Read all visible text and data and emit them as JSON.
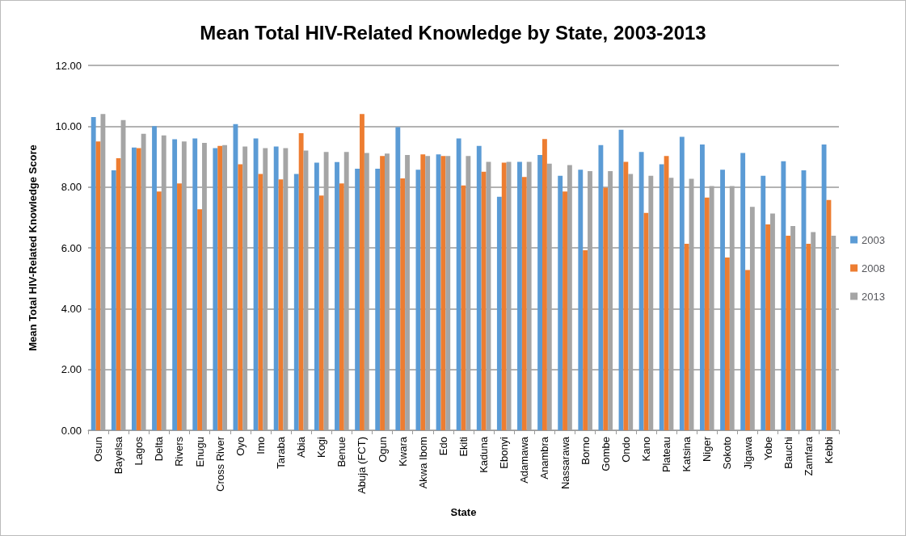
{
  "chart_data": {
    "type": "bar",
    "title": "Mean Total HIV-Related Knowledge by State, 2003-2013",
    "xlabel": "State",
    "ylabel": "Mean Total HIV-Related Knowledge Score",
    "categories": [
      "Osun",
      "Bayelsa",
      "Lagos",
      "Delta",
      "Rivers",
      "Enugu",
      "Cross River",
      "Oyo",
      "Imo",
      "Taraba",
      "Abia",
      "Kogi",
      "Benue",
      "Abuja (FCT)",
      "Ogun",
      "Kwara",
      "Akwa Ibom",
      "Edo",
      "Ekiti",
      "Kaduna",
      "Ebonyi",
      "Adamawa",
      "Anambra",
      "Nassarawa",
      "Borno",
      "Gombe",
      "Ondo",
      "Kano",
      "Plateau",
      "Katsina",
      "Niger",
      "Sokoto",
      "Jigawa",
      "Yobe",
      "Bauchi",
      "Zamfara",
      "Kebbi"
    ],
    "series": [
      {
        "name": "2003",
        "color": "#5b9bd5",
        "values": [
          10.3,
          8.55,
          9.3,
          10.0,
          9.57,
          9.6,
          9.28,
          10.07,
          9.6,
          9.33,
          8.43,
          8.8,
          8.82,
          8.6,
          8.6,
          9.97,
          8.57,
          9.07,
          9.6,
          9.35,
          7.68,
          8.83,
          9.05,
          8.37,
          8.57,
          9.38,
          9.88,
          9.15,
          8.75,
          9.65,
          9.4,
          8.57,
          9.12,
          8.37,
          8.85,
          8.55,
          9.4
        ]
      },
      {
        "name": "2008",
        "color": "#ed7d31",
        "values": [
          9.5,
          8.95,
          9.28,
          7.85,
          8.12,
          7.27,
          9.35,
          8.75,
          8.43,
          8.25,
          9.77,
          7.72,
          8.12,
          10.4,
          9.02,
          8.28,
          9.07,
          9.02,
          8.05,
          8.5,
          8.8,
          8.33,
          9.58,
          7.85,
          5.92,
          7.98,
          8.83,
          7.15,
          9.02,
          6.13,
          7.65,
          5.68,
          5.27,
          6.77,
          6.4,
          6.13,
          7.57
        ]
      },
      {
        "name": "2013",
        "color": "#a5a5a5",
        "values": [
          10.4,
          10.2,
          9.75,
          9.7,
          9.5,
          9.45,
          9.38,
          9.33,
          9.28,
          9.28,
          9.2,
          9.15,
          9.15,
          9.12,
          9.1,
          9.05,
          9.02,
          9.02,
          9.02,
          8.83,
          8.83,
          8.83,
          8.77,
          8.72,
          8.52,
          8.52,
          8.43,
          8.37,
          8.3,
          8.27,
          8.03,
          8.03,
          7.35,
          7.13,
          6.72,
          6.52,
          6.4
        ]
      }
    ],
    "ylim": [
      0,
      12
    ],
    "yticks": [
      {
        "value": 0,
        "label": "0.00"
      },
      {
        "value": 2,
        "label": "2.00"
      },
      {
        "value": 4,
        "label": "4.00"
      },
      {
        "value": 6,
        "label": "6.00"
      },
      {
        "value": 8,
        "label": "8.00"
      },
      {
        "value": 10,
        "label": "10.00"
      },
      {
        "value": 12,
        "label": "12.00"
      }
    ],
    "grid": "y",
    "legend": "right"
  }
}
